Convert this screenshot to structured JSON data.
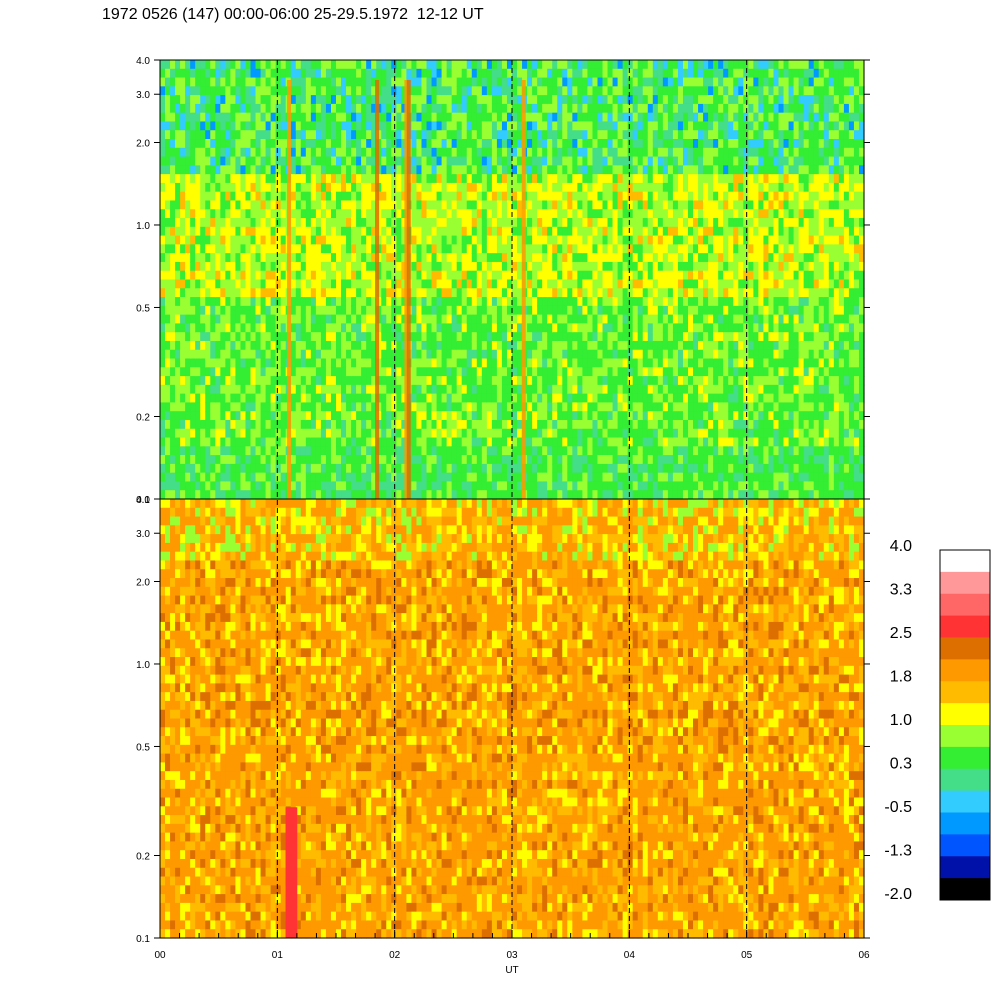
{
  "title": "1972 0526 (147) 00:00-06:00 25-29.5.1972  12-12 UT",
  "chart_data": {
    "type": "heatmap",
    "panels": [
      {
        "name": "",
        "yscale": "log",
        "ylim": [
          0.1,
          4.0
        ],
        "yticks": [
          0.1,
          0.2,
          0.5,
          1.0,
          2.0,
          3.0,
          4.0
        ],
        "ytick_labels": [
          "0.1",
          "0.2",
          "0.5",
          "1.0",
          "2.0",
          "3.0",
          "4.0"
        ],
        "right_ticks": true
      },
      {
        "name": "",
        "yscale": "log",
        "ylim": [
          0.1,
          4.0
        ],
        "yticks": [
          0.1,
          0.2,
          0.5,
          1.0,
          2.0,
          3.0,
          4.0
        ],
        "ytick_labels": [
          "0.1",
          "0.2",
          "0.5",
          "1.0",
          "2.0",
          "3.0",
          "4.0"
        ],
        "right_tick_labels": [
          "0.1",
          "0.2",
          "0.5",
          "1.0",
          "2.0",
          "3.0",
          "4.0"
        ]
      }
    ],
    "xlabel": "UT",
    "xlim": [
      0,
      6
    ],
    "xticks": [
      0,
      1,
      2,
      3,
      4,
      5,
      6
    ],
    "xtick_labels": [
      "00",
      "01",
      "02",
      "03",
      "04",
      "05",
      "06"
    ],
    "minor_xticks_per_hour": 6,
    "vlines_hours": [
      1,
      2,
      3,
      4,
      5
    ],
    "top_panel_spikes_hours": [
      1.1,
      1.85,
      2.1,
      2.12,
      3.1
    ],
    "bottom_panel_red_region": {
      "x_hours": [
        1.07,
        1.17
      ],
      "y": [
        0.1,
        0.3
      ]
    },
    "colorbar": {
      "labels": [
        "4.0",
        "3.3",
        "2.5",
        "1.8",
        "1.0",
        "0.3",
        "-0.5",
        "-1.3",
        "-2.0"
      ],
      "min": -2.0,
      "max": 4.0,
      "colors_top_to_bottom": [
        "#ffffff",
        "#ff9999",
        "#ff6666",
        "#ff3333",
        "#dd6f00",
        "#ff9900",
        "#ffbb00",
        "#ffff00",
        "#99ff33",
        "#33ee33",
        "#44dd88",
        "#33ccff",
        "#0099ff",
        "#0055ff",
        "#0011aa",
        "#000000"
      ]
    }
  }
}
